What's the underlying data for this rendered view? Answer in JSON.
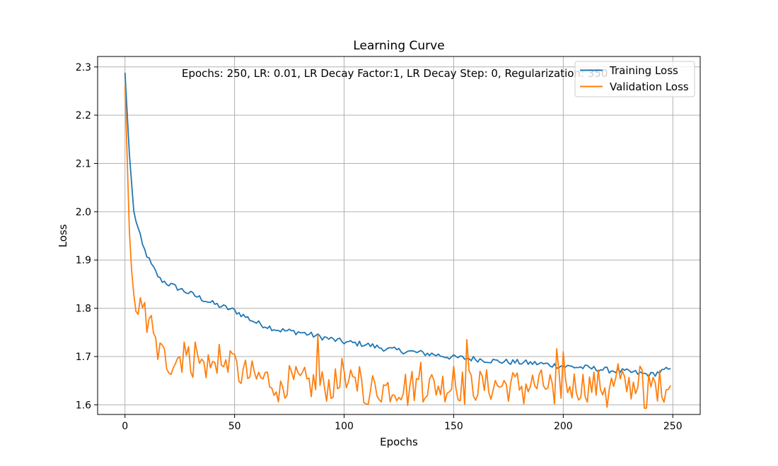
{
  "chart_data": {
    "type": "line",
    "title": "Learning Curve",
    "xlabel": "Epochs",
    "ylabel": "Loss",
    "xlim": [
      -12.5,
      262.5
    ],
    "ylim": [
      1.58,
      2.3216
    ],
    "xticks": [
      0,
      50,
      100,
      150,
      200,
      250
    ],
    "yticks": [
      1.6,
      1.7,
      1.8,
      1.9,
      2.0,
      2.1,
      2.2,
      2.3
    ],
    "xtick_labels": [
      "0",
      "50",
      "100",
      "150",
      "200",
      "250"
    ],
    "ytick_labels": [
      "1.6",
      "1.7",
      "1.8",
      "1.9",
      "2.0",
      "2.1",
      "2.2",
      "2.3"
    ],
    "grid": true,
    "legend_position": "top-right",
    "annotation": "Epochs: 250, LR: 0.01, LR Decay Factor:1, LR Decay Step: 0, Regularization: 350",
    "series": [
      {
        "name": "Training Loss",
        "color": "#1f77b4",
        "keypoints": [
          [
            0,
            2.288
          ],
          [
            2,
            2.12
          ],
          [
            4,
            2.0
          ],
          [
            8,
            1.93
          ],
          [
            12,
            1.89
          ],
          [
            16,
            1.86
          ],
          [
            20,
            1.85
          ],
          [
            25,
            1.84
          ],
          [
            30,
            1.83
          ],
          [
            40,
            1.81
          ],
          [
            50,
            1.795
          ],
          [
            60,
            1.77
          ],
          [
            70,
            1.755
          ],
          [
            80,
            1.75
          ],
          [
            90,
            1.74
          ],
          [
            100,
            1.73
          ],
          [
            110,
            1.725
          ],
          [
            120,
            1.715
          ],
          [
            130,
            1.71
          ],
          [
            140,
            1.705
          ],
          [
            150,
            1.698
          ],
          [
            160,
            1.695
          ],
          [
            170,
            1.69
          ],
          [
            180,
            1.688
          ],
          [
            190,
            1.685
          ],
          [
            200,
            1.68
          ],
          [
            210,
            1.677
          ],
          [
            220,
            1.672
          ],
          [
            230,
            1.668
          ],
          [
            240,
            1.662
          ],
          [
            249,
            1.675
          ]
        ]
      },
      {
        "name": "Validation Loss",
        "color": "#ff7f0e",
        "keypoints": [
          [
            0,
            2.262
          ],
          [
            2,
            1.96
          ],
          [
            3,
            1.88
          ],
          [
            5,
            1.82
          ],
          [
            8,
            1.78
          ],
          [
            12,
            1.745
          ],
          [
            16,
            1.705
          ],
          [
            20,
            1.69
          ],
          [
            25,
            1.7
          ],
          [
            30,
            1.69
          ],
          [
            40,
            1.68
          ],
          [
            50,
            1.67
          ],
          [
            60,
            1.655
          ],
          [
            70,
            1.65
          ],
          [
            80,
            1.645
          ],
          [
            90,
            1.64
          ],
          [
            100,
            1.64
          ],
          [
            110,
            1.635
          ],
          [
            120,
            1.635
          ],
          [
            130,
            1.64
          ],
          [
            140,
            1.64
          ],
          [
            150,
            1.64
          ],
          [
            160,
            1.64
          ],
          [
            170,
            1.64
          ],
          [
            180,
            1.64
          ],
          [
            190,
            1.64
          ],
          [
            200,
            1.64
          ],
          [
            210,
            1.64
          ],
          [
            220,
            1.64
          ],
          [
            230,
            1.64
          ],
          [
            240,
            1.64
          ],
          [
            249,
            1.64
          ]
        ],
        "spikes": [
          [
            9,
            1.812
          ],
          [
            12,
            1.785
          ],
          [
            27,
            1.73
          ],
          [
            32,
            1.73
          ],
          [
            43,
            1.725
          ],
          [
            48,
            1.712
          ],
          [
            50,
            1.705
          ],
          [
            70,
            1.745
          ],
          [
            88,
            1.745
          ],
          [
            99,
            1.696
          ],
          [
            107,
            1.679
          ],
          [
            135,
            1.688
          ],
          [
            150,
            1.68
          ],
          [
            156,
            1.735
          ],
          [
            182,
            1.712
          ],
          [
            197,
            1.716
          ],
          [
            200,
            1.71
          ],
          [
            225,
            1.685
          ],
          [
            235,
            1.68
          ]
        ],
        "dips": [
          [
            70,
            1.606
          ],
          [
            111,
            1.601
          ],
          [
            129,
            1.599
          ],
          [
            155,
            1.601
          ],
          [
            182,
            1.602
          ],
          [
            196,
            1.602
          ],
          [
            220,
            1.595
          ],
          [
            237,
            1.593
          ],
          [
            238,
            1.593
          ]
        ]
      }
    ]
  }
}
